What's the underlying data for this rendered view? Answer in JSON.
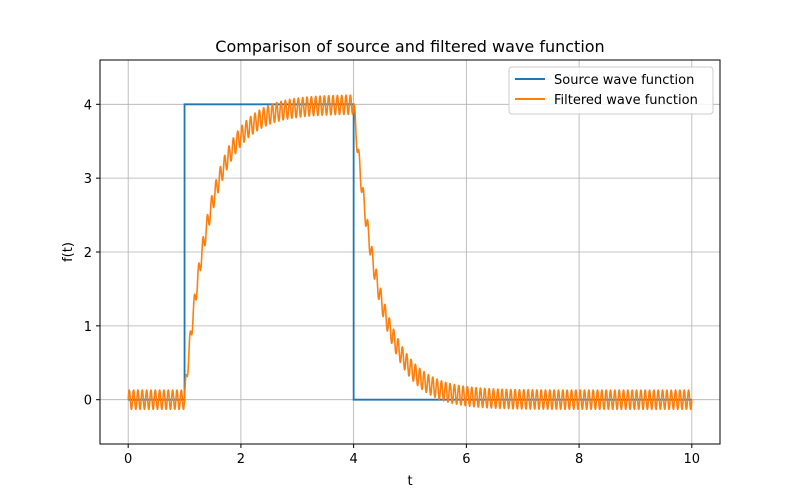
{
  "chart_data": {
    "type": "line",
    "title": "Comparison of source and filtered wave function",
    "xlabel": "t",
    "ylabel": "f(t)",
    "xlim": [
      -0.5,
      10.5
    ],
    "ylim": [
      -0.6,
      4.6
    ],
    "xticks": [
      0,
      2,
      4,
      6,
      8,
      10
    ],
    "yticks": [
      0,
      1,
      2,
      3,
      4
    ],
    "xtick_labels": [
      "0",
      "2",
      "4",
      "6",
      "8",
      "10"
    ],
    "ytick_labels": [
      "0",
      "1",
      "2",
      "3",
      "4"
    ],
    "grid": true,
    "legend_position": "top-right",
    "series": [
      {
        "name": "Source wave function",
        "color": "#1f77b4",
        "description": "rectangular pulse of height 4 from t=1 to t=4",
        "x": [
          0,
          1,
          1,
          4,
          4,
          10
        ],
        "y": [
          0,
          0,
          4,
          4,
          0,
          0
        ]
      },
      {
        "name": "Filtered wave function",
        "color": "#ff7f0e",
        "rise_start": 1,
        "fall_start": 4,
        "amplitude": 4,
        "time_constant": 0.45,
        "ripple_amplitude": 0.13,
        "ripple_cycles_per_unit": 13,
        "sample_x": [
          0,
          1,
          1.5,
          2,
          2.5,
          3,
          3.5,
          4,
          4.5,
          5,
          5.5,
          6,
          8,
          10
        ],
        "sample_y": [
          0,
          0,
          2.7,
          3.6,
          3.88,
          3.96,
          3.99,
          4.0,
          1.3,
          0.43,
          0.14,
          0.05,
          0,
          0
        ]
      }
    ]
  }
}
